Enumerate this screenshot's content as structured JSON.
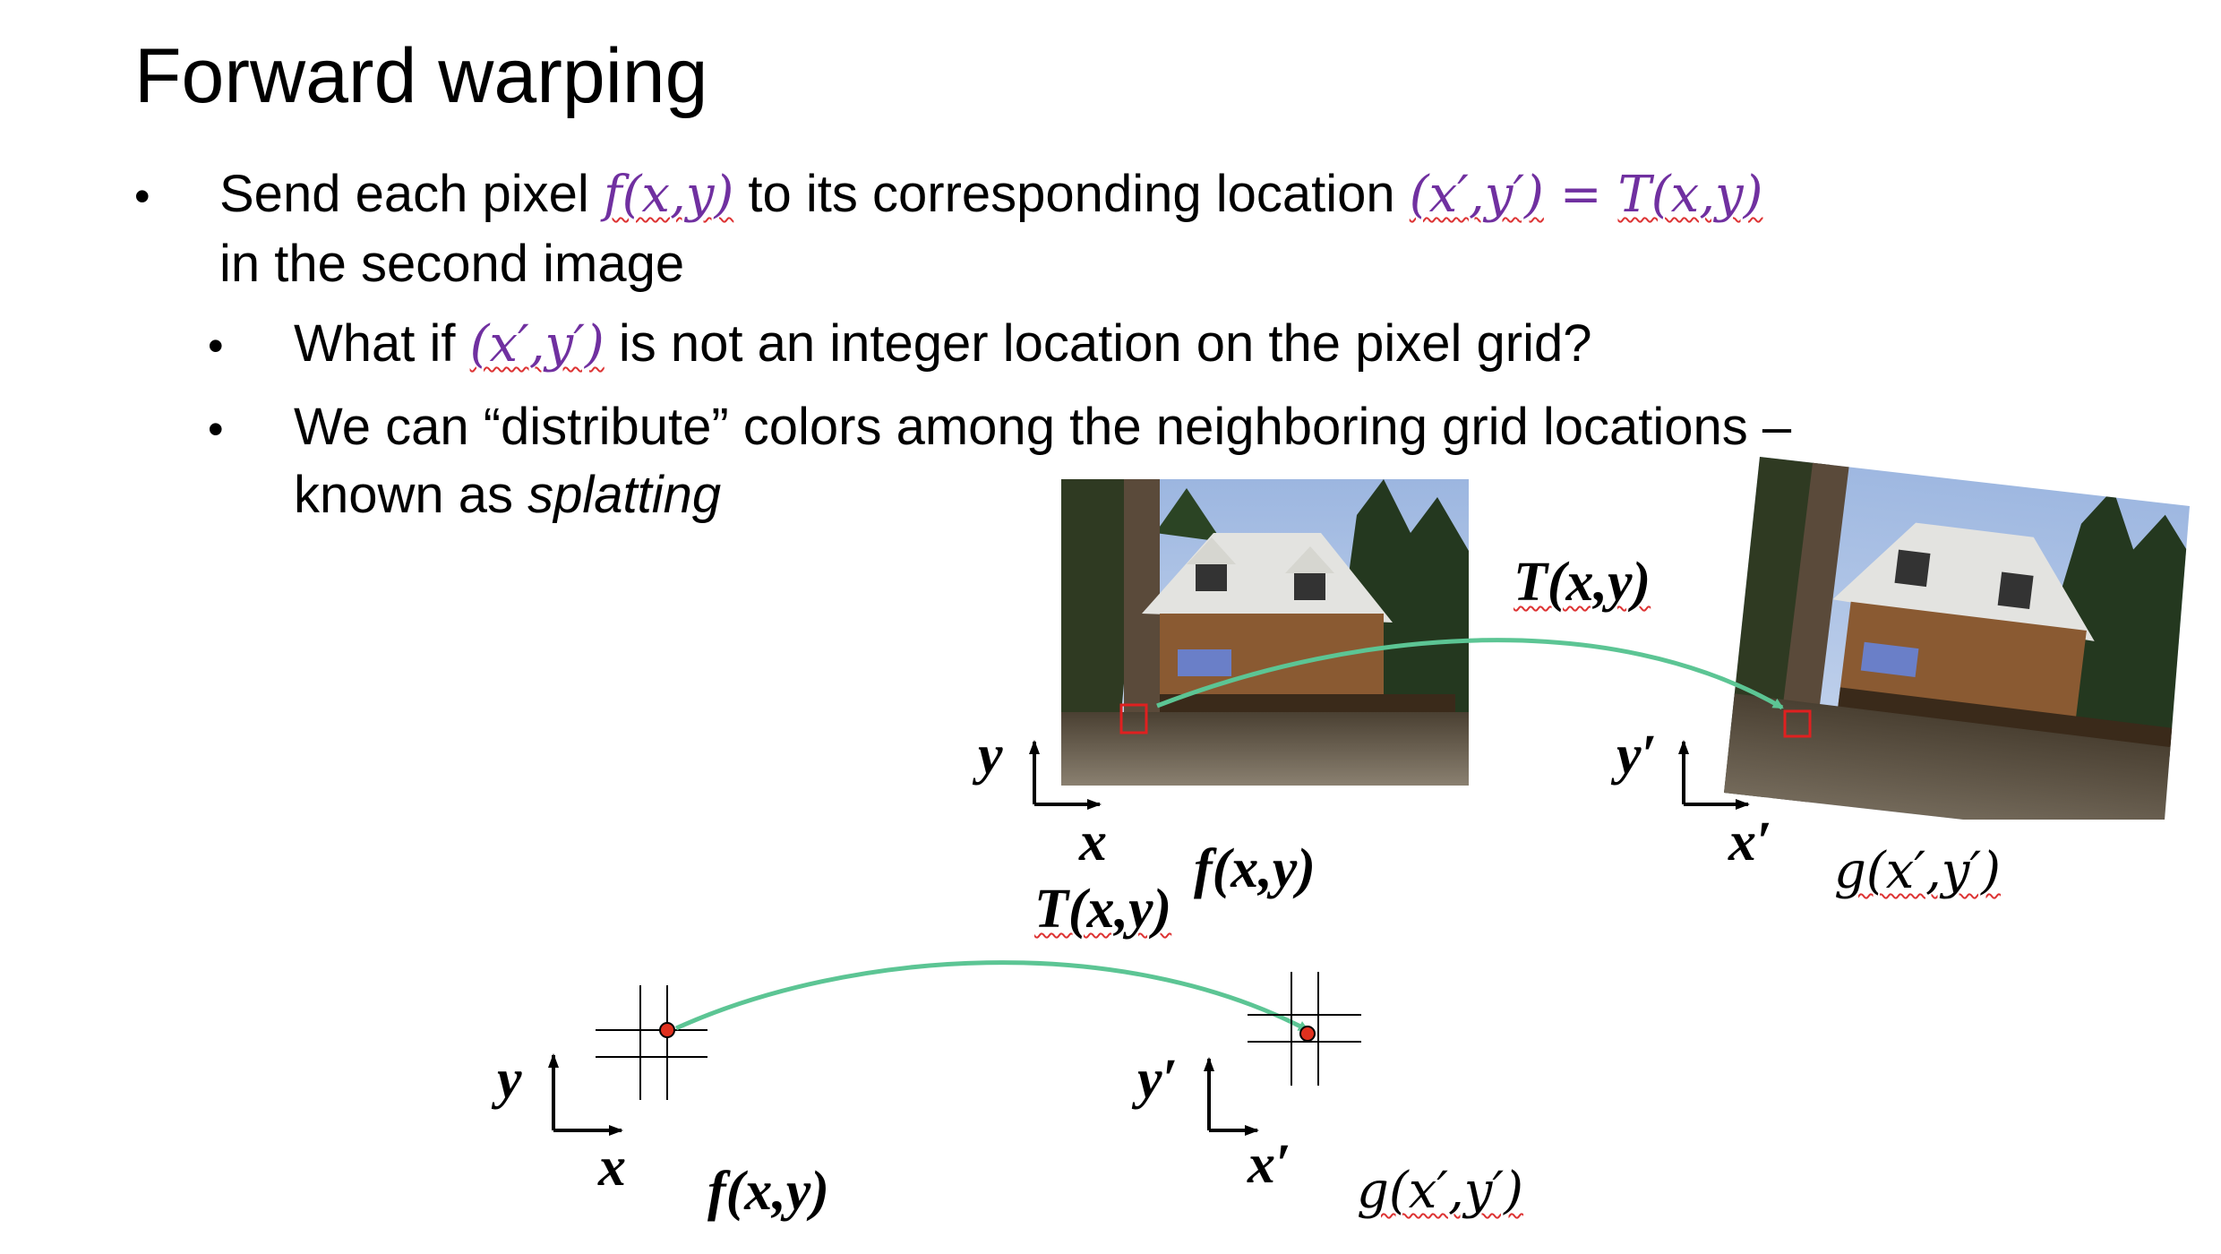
{
  "title": "Forward warping",
  "bullets": {
    "b1": {
      "dot": "•",
      "t1": "Send each pixel ",
      "m1": "f(x,y)",
      "t2": " to its corresponding location ",
      "m2": "(x′,y′)",
      "m3": " = ",
      "m4": "T(x,y)",
      "t3": "in the second image"
    },
    "b2": {
      "dot": "•",
      "t1": "What if ",
      "m1": "(x′,y′)",
      "t2": " is not an integer location on the pixel grid?"
    },
    "b3": {
      "dot": "•",
      "t1": "We can “distribute” colors among the neighboring grid locations –",
      "t2": "known as ",
      "t3": "splatting"
    }
  },
  "figure": {
    "top_transform_label": "T(x,y)",
    "src_axis_y": "y",
    "src_axis_x": "x",
    "src_label": "f(x,y)",
    "mid_transform_label": "T(x,y)",
    "dst_axis_y": "y′",
    "dst_axis_x": "x′",
    "dst_label": "g(x′,y′)",
    "grid_src_axis_y": "y",
    "grid_src_axis_x": "x",
    "grid_src_label": "f(x,y)",
    "grid_dst_axis_y": "y′",
    "grid_dst_axis_x": "x′",
    "grid_dst_label": "g(x′,y′)"
  },
  "colors": {
    "math": "#7030a0",
    "arrow": "#5cc594",
    "marker_box": "#e02020",
    "dot": "#e0301e"
  }
}
